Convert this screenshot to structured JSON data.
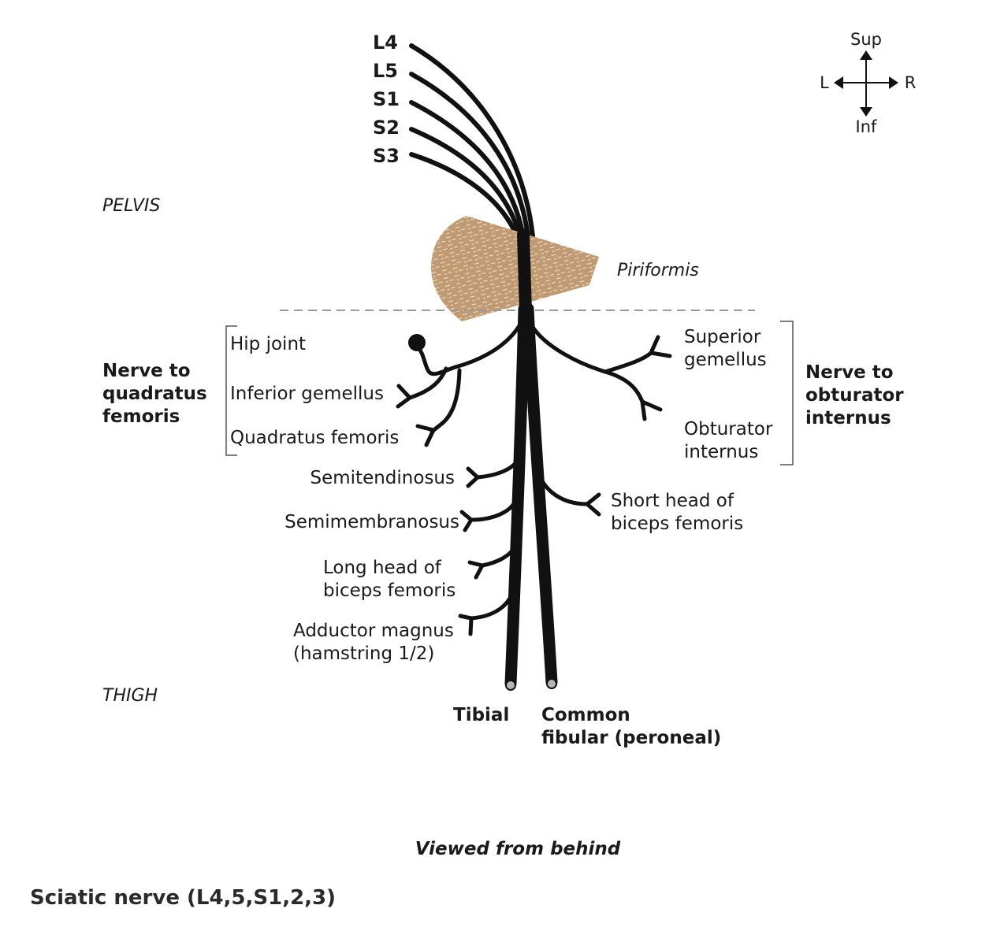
{
  "roots": [
    "L4",
    "L5",
    "S1",
    "S2",
    "S3"
  ],
  "regions": {
    "pelvis": "PELVIS",
    "thigh": "THIGH"
  },
  "piriformis": "Piriformis",
  "compass": {
    "sup": "Sup",
    "inf": "Inf",
    "left": "L",
    "right": "R"
  },
  "quadratus_group": {
    "title": [
      "Nerve to",
      "quadratus",
      "femoris"
    ],
    "targets": [
      "Hip joint",
      "Inferior gemellus",
      "Quadratus femoris"
    ]
  },
  "obturator_group": {
    "title": [
      "Nerve to",
      "obturator",
      "internus"
    ],
    "targets": [
      [
        "Superior",
        "gemellus"
      ],
      [
        "Obturator",
        "internus"
      ]
    ]
  },
  "tibial_branches": [
    [
      "Semitendinosus"
    ],
    [
      "Semimembranosus"
    ],
    [
      "Long head of",
      "biceps femoris"
    ],
    [
      "Adductor magnus",
      "(hamstring 1/2)"
    ]
  ],
  "fibular_branch": [
    "Short head of",
    "biceps femoris"
  ],
  "terminals": {
    "tibial": "Tibial",
    "common_fibular": [
      "Common",
      "fibular (peroneal)"
    ]
  },
  "view_note": "Viewed from behind",
  "caption": "Sciatic nerve (L4,5,S1,2,3)",
  "colors": {
    "muscle": "#c09a72",
    "nerve": "#111111",
    "dash": "#9a9a9a",
    "terminal_cap": "#b5b5b5"
  }
}
